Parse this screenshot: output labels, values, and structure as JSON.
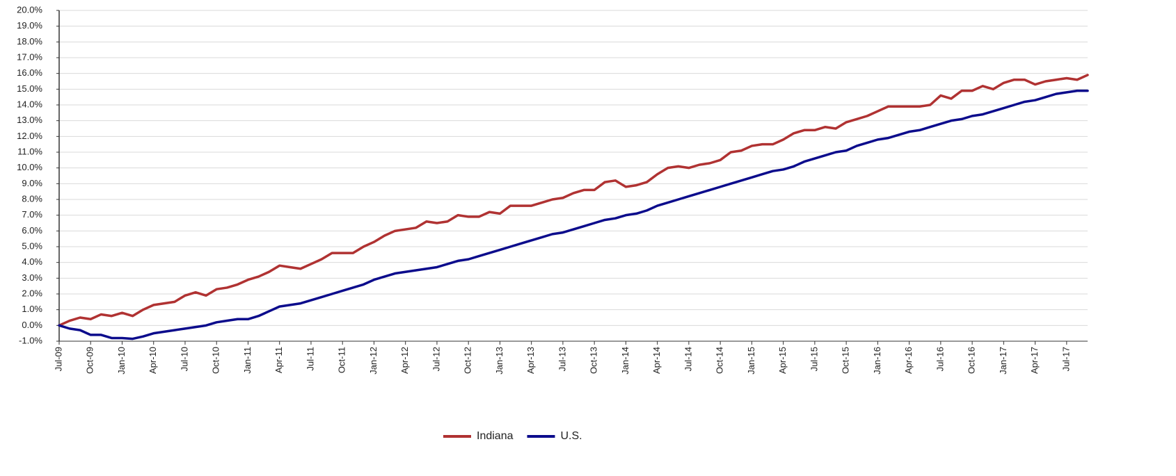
{
  "chart_data": {
    "type": "line",
    "categories": [
      "Jul-09",
      null,
      null,
      "Oct-09",
      null,
      null,
      "Jan-10",
      null,
      null,
      "Apr-10",
      null,
      null,
      "Jul-10",
      null,
      null,
      "Oct-10",
      null,
      null,
      "Jan-11",
      null,
      null,
      "Apr-11",
      null,
      null,
      "Jul-11",
      null,
      null,
      "Oct-11",
      null,
      null,
      "Jan-12",
      null,
      null,
      "Apr-12",
      null,
      null,
      "Jul-12",
      null,
      null,
      "Oct-12",
      null,
      null,
      "Jan-13",
      null,
      null,
      "Apr-13",
      null,
      null,
      "Jul-13",
      null,
      null,
      "Oct-13",
      null,
      null,
      "Jan-14",
      null,
      null,
      "Apr-14",
      null,
      null,
      "Jul-14",
      null,
      null,
      "Oct-14",
      null,
      null,
      "Jan-15",
      null,
      null,
      "Apr-15",
      null,
      null,
      "Jul-15",
      null,
      null,
      "Oct-15",
      null,
      null,
      "Jan-16",
      null,
      null,
      "Apr-16",
      null,
      null,
      "Jul-16",
      null,
      null,
      "Oct-16",
      null,
      null,
      "Jan-17",
      null,
      null,
      "Apr-17",
      null,
      null,
      "Jul-17",
      null,
      null
    ],
    "series": [
      {
        "name": "Indiana",
        "color": "#b03232",
        "values": [
          0.0,
          0.3,
          0.5,
          0.4,
          0.7,
          0.6,
          0.8,
          0.6,
          1.0,
          1.3,
          1.4,
          1.5,
          1.9,
          2.1,
          1.9,
          2.3,
          2.4,
          2.6,
          2.9,
          3.1,
          3.4,
          3.8,
          3.7,
          3.6,
          3.9,
          4.2,
          4.6,
          4.6,
          4.6,
          5.0,
          5.3,
          5.7,
          6.0,
          6.1,
          6.2,
          6.6,
          6.5,
          6.6,
          7.0,
          6.9,
          6.9,
          7.2,
          7.1,
          7.6,
          7.6,
          7.6,
          7.8,
          8.0,
          8.1,
          8.4,
          8.6,
          8.6,
          9.1,
          9.2,
          8.8,
          8.9,
          9.1,
          9.6,
          10.0,
          10.1,
          10.0,
          10.2,
          10.3,
          10.5,
          11.0,
          11.1,
          11.4,
          11.5,
          11.5,
          11.8,
          12.2,
          12.4,
          12.4,
          12.6,
          12.5,
          12.9,
          13.1,
          13.3,
          13.6,
          13.9,
          13.9,
          13.9,
          13.9,
          14.0,
          14.6,
          14.4,
          14.9,
          14.9,
          15.2,
          15.0,
          15.4,
          15.6,
          15.6,
          15.3,
          15.5,
          15.6,
          15.7,
          15.6,
          15.9
        ]
      },
      {
        "name": "U.S.",
        "color": "#0c0c8c",
        "values": [
          0.0,
          -0.2,
          -0.3,
          -0.6,
          -0.6,
          -0.8,
          -0.8,
          -0.85,
          -0.7,
          -0.5,
          -0.4,
          -0.3,
          -0.2,
          -0.1,
          0.0,
          0.2,
          0.3,
          0.4,
          0.4,
          0.6,
          0.9,
          1.2,
          1.3,
          1.4,
          1.6,
          1.8,
          2.0,
          2.2,
          2.4,
          2.6,
          2.9,
          3.1,
          3.3,
          3.4,
          3.5,
          3.6,
          3.7,
          3.9,
          4.1,
          4.2,
          4.4,
          4.6,
          4.8,
          5.0,
          5.2,
          5.4,
          5.6,
          5.8,
          5.9,
          6.1,
          6.3,
          6.5,
          6.7,
          6.8,
          7.0,
          7.1,
          7.3,
          7.6,
          7.8,
          8.0,
          8.2,
          8.4,
          8.6,
          8.8,
          9.0,
          9.2,
          9.4,
          9.6,
          9.8,
          9.9,
          10.1,
          10.4,
          10.6,
          10.8,
          11.0,
          11.1,
          11.4,
          11.6,
          11.8,
          11.9,
          12.1,
          12.3,
          12.4,
          12.6,
          12.8,
          13.0,
          13.1,
          13.3,
          13.4,
          13.6,
          13.8,
          14.0,
          14.2,
          14.3,
          14.5,
          14.7,
          14.8,
          14.9,
          14.9
        ]
      }
    ],
    "ylim": [
      -1,
      20
    ],
    "yticks": [
      {
        "value": -1,
        "label": "-1.0%"
      },
      {
        "value": 0,
        "label": "0.0%"
      },
      {
        "value": 1,
        "label": "1.0%"
      },
      {
        "value": 2,
        "label": "2.0%"
      },
      {
        "value": 3,
        "label": "3.0%"
      },
      {
        "value": 4,
        "label": "4.0%"
      },
      {
        "value": 5,
        "label": "5.0%"
      },
      {
        "value": 6,
        "label": "6.0%"
      },
      {
        "value": 7,
        "label": "7.0%"
      },
      {
        "value": 8,
        "label": "8.0%"
      },
      {
        "value": 9,
        "label": "9.0%"
      },
      {
        "value": 10,
        "label": "10.0%"
      },
      {
        "value": 11,
        "label": "11.0%"
      },
      {
        "value": 12,
        "label": "12.0%"
      },
      {
        "value": 13,
        "label": "13.0%"
      },
      {
        "value": 14,
        "label": "14.0%"
      },
      {
        "value": 15,
        "label": "15.0%"
      },
      {
        "value": 16,
        "label": "16.0%"
      },
      {
        "value": 17,
        "label": "17.0%"
      },
      {
        "value": 18,
        "label": "18.0%"
      },
      {
        "value": 19,
        "label": "19.0%"
      },
      {
        "value": 20,
        "label": "20.0%"
      }
    ],
    "grid": true,
    "legend": "bottom"
  }
}
